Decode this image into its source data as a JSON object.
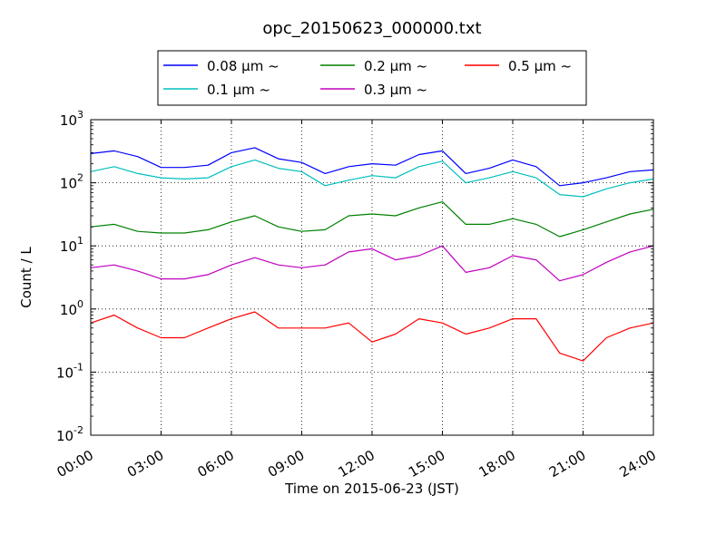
{
  "chart_data": {
    "type": "line",
    "title": "opc_20150623_000000.txt",
    "xlabel": "Time on 2015-06-23 (JST)",
    "ylabel": "Count / L",
    "yscale": "log",
    "ylim": [
      0.01,
      1000
    ],
    "xlim": [
      "00:00",
      "24:00"
    ],
    "x_ticks": [
      "00:00",
      "03:00",
      "06:00",
      "09:00",
      "12:00",
      "15:00",
      "18:00",
      "21:00",
      "24:00"
    ],
    "y_ticks": [
      {
        "base": "10",
        "exp": "-2"
      },
      {
        "base": "10",
        "exp": "-1"
      },
      {
        "base": "10",
        "exp": "0"
      },
      {
        "base": "10",
        "exp": "1"
      },
      {
        "base": "10",
        "exp": "2"
      },
      {
        "base": "10",
        "exp": "3"
      }
    ],
    "grid": true,
    "legend_position": "top, above plot, 3 columns",
    "x": [
      "00:00",
      "01:00",
      "02:00",
      "03:00",
      "04:00",
      "05:00",
      "06:00",
      "07:00",
      "08:00",
      "09:00",
      "10:00",
      "11:00",
      "12:00",
      "13:00",
      "14:00",
      "15:00",
      "16:00",
      "17:00",
      "18:00",
      "19:00",
      "20:00",
      "21:00",
      "22:00",
      "23:00",
      "24:00"
    ],
    "series": [
      {
        "name": "0.08 μm ~",
        "color": "#0000ff",
        "values": [
          290,
          320,
          260,
          175,
          175,
          190,
          300,
          360,
          240,
          210,
          140,
          180,
          200,
          190,
          280,
          320,
          140,
          170,
          230,
          180,
          90,
          100,
          120,
          150,
          160
        ]
      },
      {
        "name": "0.1 μm ~",
        "color": "#00bfbf",
        "values": [
          150,
          180,
          140,
          120,
          115,
          120,
          180,
          230,
          170,
          150,
          90,
          110,
          130,
          120,
          180,
          220,
          100,
          120,
          150,
          120,
          65,
          60,
          80,
          100,
          115
        ]
      },
      {
        "name": "0.2 μm ~",
        "color": "#008000",
        "values": [
          20,
          22,
          17,
          16,
          16,
          18,
          24,
          30,
          20,
          17,
          18,
          30,
          32,
          30,
          40,
          50,
          22,
          22,
          27,
          22,
          14,
          18,
          24,
          32,
          38
        ]
      },
      {
        "name": "0.3 μm ~",
        "color": "#bf00bf",
        "values": [
          4.5,
          5,
          4,
          3,
          3,
          3.5,
          5,
          6.5,
          5,
          4.5,
          5,
          8,
          9,
          6,
          7,
          10,
          3.8,
          4.5,
          7,
          6,
          2.8,
          3.5,
          5.5,
          8,
          10
        ]
      },
      {
        "name": "0.5 μm ~",
        "color": "#ff0000",
        "values": [
          0.6,
          0.8,
          0.5,
          0.35,
          0.35,
          0.5,
          0.7,
          0.9,
          0.5,
          0.5,
          0.5,
          0.6,
          0.3,
          0.4,
          0.7,
          0.6,
          0.4,
          0.5,
          0.7,
          0.7,
          0.2,
          0.15,
          0.35,
          0.5,
          0.6
        ]
      }
    ]
  }
}
